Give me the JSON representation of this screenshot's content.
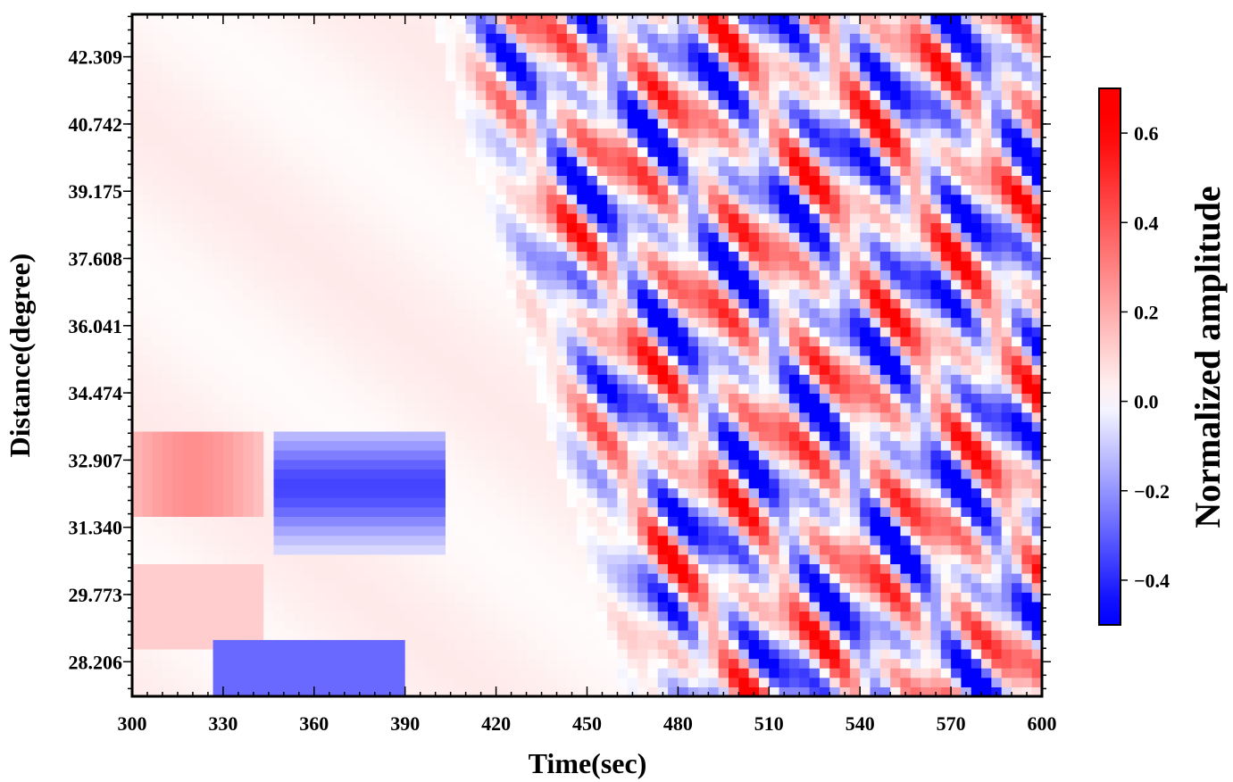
{
  "chart_data": {
    "type": "heatmap",
    "title": "",
    "xlabel": "Time(sec)",
    "ylabel": "Distance(degree)",
    "xlim": [
      300,
      600
    ],
    "ylim": [
      27.4,
      43.3
    ],
    "x_ticks": [
      300,
      330,
      360,
      390,
      420,
      450,
      480,
      510,
      540,
      570,
      600
    ],
    "x_tick_labels": [
      "300",
      "330",
      "360",
      "390",
      "420",
      "450",
      "480",
      "510",
      "540",
      "570",
      "600"
    ],
    "y_ticks": [
      28.206,
      29.773,
      31.34,
      32.907,
      34.474,
      36.041,
      37.608,
      39.175,
      40.742,
      42.309
    ],
    "y_tick_labels": [
      "28.206",
      "29.773",
      "31.340",
      "32.907",
      "34.474",
      "36.041",
      "37.608",
      "39.175",
      "40.742",
      "42.309"
    ],
    "grid": false,
    "colorbar": {
      "label": "Normalized amplitude",
      "range": [
        -0.5,
        0.7
      ],
      "ticks": [
        0.6,
        0.4,
        0.2,
        0.0,
        -0.2,
        -0.4
      ],
      "tick_labels": [
        "0.6",
        "0.4",
        "0.2",
        "0.0",
        "−0.2",
        "−0.4"
      ],
      "colormap": [
        "#0000ff",
        "#ffffff",
        "#ff0000"
      ]
    },
    "regions": [
      {
        "x": [
          300,
          440
        ],
        "y": [
          33.5,
          43.3
        ],
        "value": 0.03
      },
      {
        "x": [
          300,
          345
        ],
        "y": [
          31.8,
          33.5
        ],
        "value": 0.25
      },
      {
        "x": [
          300,
          345
        ],
        "y": [
          28.8,
          30.5
        ],
        "value": 0.12
      },
      {
        "x": [
          350,
          400
        ],
        "y": [
          31.0,
          33.5
        ],
        "value": -0.35
      },
      {
        "x": [
          330,
          380
        ],
        "y": [
          27.4,
          28.8
        ],
        "value": -0.3
      },
      {
        "x": [
          450,
          600
        ],
        "y": [
          27.4,
          43.3
        ],
        "value": 0.0
      }
    ]
  }
}
